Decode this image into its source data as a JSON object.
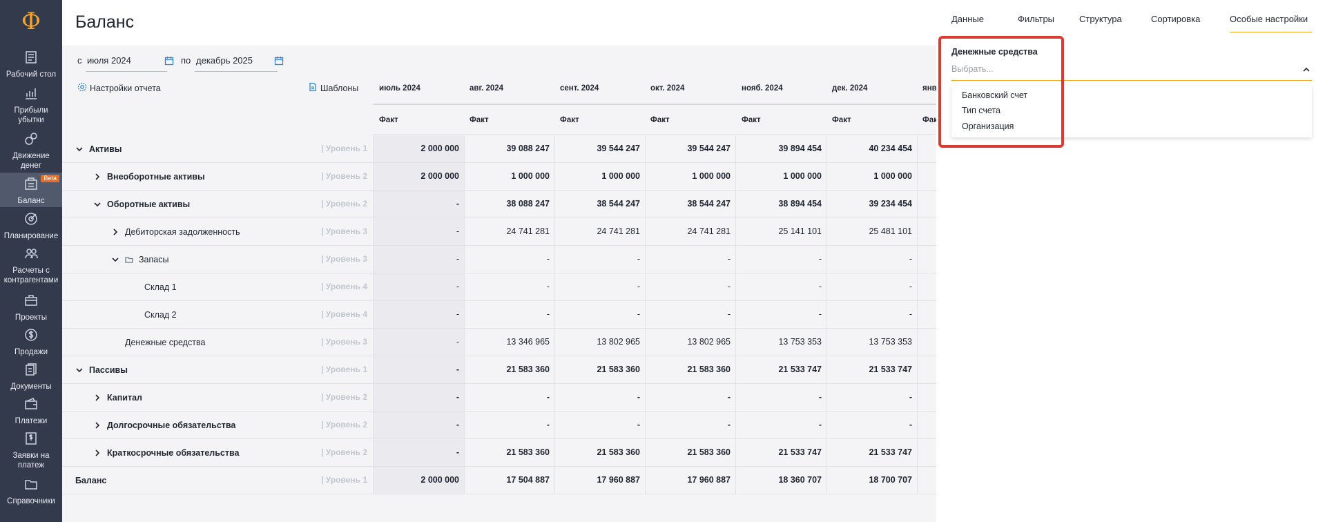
{
  "sidebar": {
    "logo": "Ф",
    "items": [
      {
        "label": "Рабочий стол",
        "icon": "desktop-icon"
      },
      {
        "label": "Прибыли убытки",
        "icon": "chart-icon"
      },
      {
        "label": "Движение денег",
        "icon": "money-flow-icon"
      },
      {
        "label": "Баланс",
        "icon": "balance-icon",
        "active": true,
        "badge": "Beta"
      },
      {
        "label": "Планирование",
        "icon": "target-icon"
      },
      {
        "label": "Расчеты с контрагентами",
        "icon": "people-icon"
      },
      {
        "label": "Проекты",
        "icon": "briefcase-icon"
      },
      {
        "label": "Продажи",
        "icon": "dollar-icon"
      },
      {
        "label": "Документы",
        "icon": "documents-icon"
      },
      {
        "label": "Платежи",
        "icon": "wallet-icon"
      },
      {
        "label": "Заявки на платеж",
        "icon": "request-icon"
      },
      {
        "label": "Справочники",
        "icon": "folder-icon"
      }
    ]
  },
  "header": {
    "title": "Баланс"
  },
  "period": {
    "from_label": "с",
    "from_value": "июля 2024",
    "to_label": "по",
    "to_value": "декабрь 2025"
  },
  "toolbar": {
    "report_settings": "Настройки отчета",
    "templates": "Шаблоны"
  },
  "table": {
    "columns": [
      "июль 2024",
      "авг. 2024",
      "сент. 2024",
      "окт. 2024",
      "нояб. 2024",
      "дек. 2024",
      "янв"
    ],
    "sub_header": "Факт",
    "rows": [
      {
        "name": "Активы",
        "level": "| Уровень 1",
        "bold": true,
        "values": [
          "2 000 000",
          "39 088 247",
          "39 544 247",
          "39 544 247",
          "39 894 454",
          "40 234 454"
        ]
      },
      {
        "name": "Внеоборотные активы",
        "level": "| Уровень 2",
        "bold": true,
        "values": [
          "2 000 000",
          "1 000 000",
          "1 000 000",
          "1 000 000",
          "1 000 000",
          "1 000 000"
        ]
      },
      {
        "name": "Оборотные активы",
        "level": "| Уровень 2",
        "bold": true,
        "values": [
          "-",
          "38 088 247",
          "38 544 247",
          "38 544 247",
          "38 894 454",
          "39 234 454"
        ]
      },
      {
        "name": "Дебиторская задолженность",
        "level": "| Уровень 3",
        "bold": false,
        "values": [
          "-",
          "24 741 281",
          "24 741 281",
          "24 741 281",
          "25 141 101",
          "25 481 101"
        ]
      },
      {
        "name": "Запасы",
        "level": "| Уровень 3",
        "bold": false,
        "values": [
          "-",
          "-",
          "-",
          "-",
          "-",
          "-"
        ]
      },
      {
        "name": "Склад 1",
        "level": "| Уровень 4",
        "bold": false,
        "values": [
          "-",
          "-",
          "-",
          "-",
          "-",
          "-"
        ]
      },
      {
        "name": "Склад 2",
        "level": "| Уровень 4",
        "bold": false,
        "values": [
          "-",
          "-",
          "-",
          "-",
          "-",
          "-"
        ]
      },
      {
        "name": "Денежные средства",
        "level": "| Уровень 3",
        "bold": false,
        "values": [
          "-",
          "13 346 965",
          "13 802 965",
          "13 802 965",
          "13 753 353",
          "13 753 353"
        ]
      },
      {
        "name": "Пассивы",
        "level": "| Уровень 1",
        "bold": true,
        "values": [
          "-",
          "21 583 360",
          "21 583 360",
          "21 583 360",
          "21 533 747",
          "21 533 747"
        ]
      },
      {
        "name": "Капитал",
        "level": "| Уровень 2",
        "bold": true,
        "values": [
          "-",
          "-",
          "-",
          "-",
          "-",
          "-"
        ]
      },
      {
        "name": "Долгосрочные обязательства",
        "level": "| Уровень 2",
        "bold": true,
        "values": [
          "-",
          "-",
          "-",
          "-",
          "-",
          "-"
        ]
      },
      {
        "name": "Краткосрочные обязательства",
        "level": "| Уровень 2",
        "bold": true,
        "values": [
          "-",
          "21 583 360",
          "21 583 360",
          "21 583 360",
          "21 533 747",
          "21 533 747"
        ]
      },
      {
        "name": "Баланс",
        "level": "| Уровень 1",
        "bold": true,
        "values": [
          "2 000 000",
          "17 504 887",
          "17 960 887",
          "17 960 887",
          "18 360 707",
          "18 700 707"
        ]
      }
    ]
  },
  "panel": {
    "tabs": [
      "Данные",
      "Фильтры",
      "Структура",
      "Сортировка",
      "Особые настройки"
    ],
    "active_tab": "Особые настройки",
    "section_label": "Денежные средства",
    "select_placeholder": "Выбрать...",
    "options": [
      "Банковский счет",
      "Тип счета",
      "Организация"
    ]
  }
}
